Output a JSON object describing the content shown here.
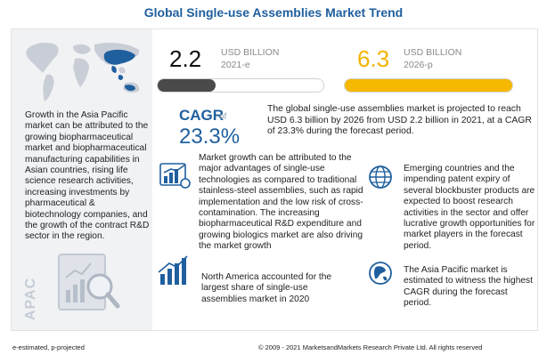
{
  "title": "Global Single-use Assemblies Market Trend",
  "stats": {
    "start": {
      "value": "2.2",
      "unit": "USD BILLION",
      "year": "2021-e",
      "fill_percent": 35,
      "value_color": "#111111",
      "bar_color": "#4a4a4a"
    },
    "end": {
      "value": "6.3",
      "unit": "USD BILLION",
      "year": "2026-p",
      "fill_percent": 100,
      "value_color": "#f2b400",
      "bar_color": "#f6b800"
    }
  },
  "cagr": {
    "label": "CAGR",
    "of": "of",
    "value": "23.3%",
    "text": "The global single-use assemblies market is projected to reach USD 6.3 billion by 2026 from USD 2.2 billion in 2021, at a CAGR of 23.3% during the forecast period."
  },
  "left": {
    "text": "Growth in the Asia Pacific market can be attributed to the growing biopharmaceutical market and biopharmaceutical manufacturing capabilities in Asian countries, rising life science research activities, increasing investments by pharmaceutical & biotechnology companies, and the growth of the contract R&D sector in the region.",
    "region_label": "APAC"
  },
  "blocks": {
    "growth": "Market growth can be attributed to the major advantages of single-use technologies as compared to traditional stainless-steel assemblies, such as rapid implementation and the low risk of cross-contamination. The increasing biopharmaceutical R&D expenditure and growing biologics market are also driving the market growth",
    "north_america": "North America accounted for the largest share of single-use assemblies market in 2020",
    "emerging": "Emerging countries and the impending patent expiry of several blockbuster products are expected to boost research activities in the sector and offer lucrative growth opportunities for market players in the forecast period.",
    "asia": "The Asia Pacific market is estimated to witness the highest CAGR during the forecast period."
  },
  "footer": {
    "legend": "e-estimated, p-projected",
    "copyright": "© 2009 - 2021 MarketsandMarkets Research Private Ltd. All rights reserved"
  },
  "colors": {
    "title": "#1f5f9e",
    "accent": "#1f5f9e",
    "yellow": "#f6b800",
    "panel": "#f1f2f4"
  }
}
